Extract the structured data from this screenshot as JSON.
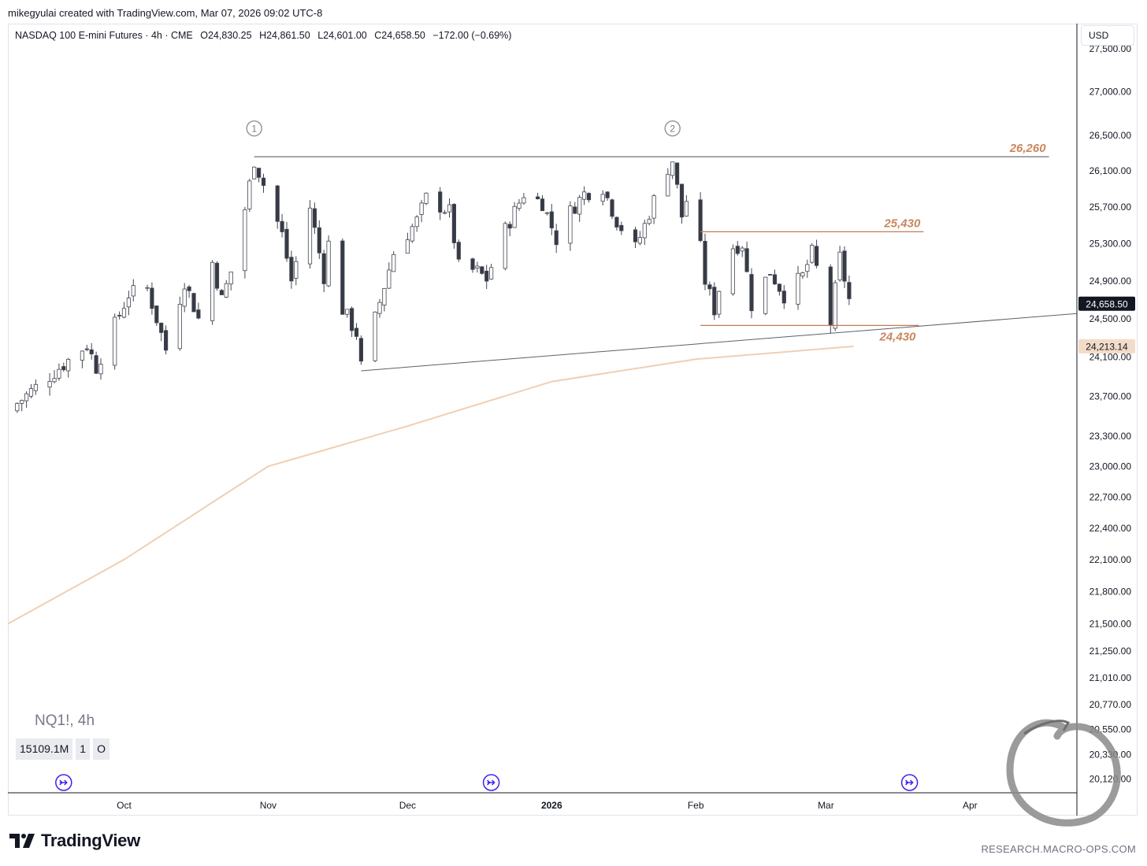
{
  "header": {
    "credit": "mikegyulai created with TradingView.com, Mar 07, 2026 09:02 UTC-8"
  },
  "legend": {
    "title": "NASDAQ 100 E-mini Futures · 4h · CME",
    "open": "O24,830.25",
    "high": "H24,861.50",
    "low": "L24,601.00",
    "close": "C24,658.50",
    "change": "−172.00 (−0.69%)"
  },
  "currency_label": "USD",
  "symbol_overlay": "NQ1!, 4h",
  "volume": {
    "value": "15109.1M",
    "badge_1": "1",
    "badge_2": "O"
  },
  "brand": {
    "name": "TradingView"
  },
  "footer_site": "RESEARCH.MACRO-OPS.COM",
  "colors": {
    "up_candle": "#ffffff",
    "down_candle": "#363a45",
    "candle_outline": "#434651",
    "level_line": "#c27b52",
    "level_text": "#c9865c",
    "moving_average": "#efcfb3",
    "trend_line": "#5d606b",
    "last_price_bg": "#131722",
    "ma_price_bg": "#f2dcc8",
    "event_marker": "#3b22f0"
  },
  "chart_data": {
    "type": "candlestick",
    "symbol": "NQ1!",
    "timeframe": "4h",
    "y_scale": "log",
    "ylim": [
      20000,
      27800
    ],
    "yticks": [
      27500,
      27000,
      26500,
      26100,
      25700,
      25300,
      24900,
      24500,
      24100,
      23700,
      23300,
      23000,
      22700,
      22400,
      22100,
      21800,
      21500,
      21250,
      21010,
      20770,
      20550,
      20330,
      20120
    ],
    "ytick_labels": [
      "27,500.00",
      "27,000.00",
      "26,500.00",
      "26,100.00",
      "25,700.00",
      "25,300.00",
      "24,900.00",
      "24,500.00",
      "24,100.00",
      "23,700.00",
      "23,300.00",
      "23,000.00",
      "22,700.00",
      "22,400.00",
      "22,100.00",
      "21,800.00",
      "21,500.00",
      "21,250.00",
      "21,010.00",
      "20,770.00",
      "20,550.00",
      "20,330.00",
      "20,120.00"
    ],
    "x_range": [
      "2025-09-06",
      "2026-04-24"
    ],
    "xticks": [
      {
        "date": "2025-10-01",
        "label": "Oct",
        "bold": false
      },
      {
        "date": "2025-11-01",
        "label": "Nov",
        "bold": false
      },
      {
        "date": "2025-12-01",
        "label": "Dec",
        "bold": false
      },
      {
        "date": "2026-01-01",
        "label": "2026",
        "bold": true
      },
      {
        "date": "2026-02-01",
        "label": "Feb",
        "bold": false
      },
      {
        "date": "2026-03-01",
        "label": "Mar",
        "bold": false
      },
      {
        "date": "2026-04-01",
        "label": "Apr",
        "bold": false
      }
    ],
    "last_price": {
      "value": 24658.5,
      "label": "24,658.50"
    },
    "ma_price": {
      "value": 24213.14,
      "label": "24,213.14"
    },
    "price_path": [
      [
        "2025-09-06",
        23550
      ],
      [
        "2025-09-16",
        23950
      ],
      [
        "2025-09-23",
        24230
      ],
      [
        "2025-09-25",
        24000
      ],
      [
        "2025-10-02",
        24760
      ],
      [
        "2025-10-06",
        24820
      ],
      [
        "2025-10-10",
        24180
      ],
      [
        "2025-10-14",
        24900
      ],
      [
        "2025-10-17",
        24500
      ],
      [
        "2025-10-20",
        25100
      ],
      [
        "2025-10-22",
        24700
      ],
      [
        "2025-10-24",
        25000
      ],
      [
        "2025-10-27",
        25680
      ],
      [
        "2025-10-29",
        26220
      ],
      [
        "2025-10-31",
        25950
      ],
      [
        "2025-11-04",
        25400
      ],
      [
        "2025-11-06",
        24900
      ],
      [
        "2025-11-10",
        25700
      ],
      [
        "2025-11-13",
        24950
      ],
      [
        "2025-11-14",
        25300
      ],
      [
        "2025-11-17",
        24600
      ],
      [
        "2025-11-20",
        24350
      ],
      [
        "2025-11-21",
        24000
      ],
      [
        "2025-11-24",
        24500
      ],
      [
        "2025-11-28",
        25200
      ],
      [
        "2025-12-03",
        25550
      ],
      [
        "2025-12-05",
        25800
      ],
      [
        "2025-12-10",
        25650
      ],
      [
        "2025-12-12",
        25050
      ],
      [
        "2025-12-16",
        25000
      ],
      [
        "2025-12-18",
        24920
      ],
      [
        "2025-12-22",
        25450
      ],
      [
        "2025-12-26",
        25850
      ],
      [
        "2025-12-30",
        25750
      ],
      [
        "2026-01-02",
        25350
      ],
      [
        "2026-01-05",
        25650
      ],
      [
        "2026-01-08",
        25850
      ],
      [
        "2026-01-12",
        25920
      ],
      [
        "2026-01-15",
        25550
      ],
      [
        "2026-01-19",
        25250
      ],
      [
        "2026-01-21",
        25500
      ],
      [
        "2026-01-25",
        26050
      ],
      [
        "2026-01-27",
        26220
      ],
      [
        "2026-01-29",
        25600
      ],
      [
        "2026-01-31",
        25950
      ],
      [
        "2026-02-03",
        24900
      ],
      [
        "2026-02-05",
        24600
      ],
      [
        "2026-02-08",
        25250
      ],
      [
        "2026-02-11",
        25300
      ],
      [
        "2026-02-13",
        24650
      ],
      [
        "2026-02-17",
        25000
      ],
      [
        "2026-02-20",
        24750
      ],
      [
        "2026-02-24",
        24950
      ],
      [
        "2026-02-26",
        25200
      ],
      [
        "2026-03-01",
        24700
      ],
      [
        "2026-03-02",
        24450
      ],
      [
        "2026-03-04",
        25150
      ],
      [
        "2026-03-06",
        24700
      ],
      [
        "2026-03-07",
        24658.5
      ]
    ],
    "ma_line": [
      [
        "2025-09-06",
        21500
      ],
      [
        "2025-10-01",
        22100
      ],
      [
        "2025-11-01",
        23000
      ],
      [
        "2025-12-01",
        23400
      ],
      [
        "2026-01-01",
        23850
      ],
      [
        "2026-02-01",
        24080
      ],
      [
        "2026-03-07",
        24213
      ]
    ],
    "trend_line": {
      "start": [
        "2025-11-21",
        23960
      ],
      "end": [
        "2026-04-24",
        24555
      ]
    },
    "resistance_line": {
      "start": [
        "2025-10-29",
        26260
      ],
      "end": [
        "2026-04-18",
        26260
      ]
    },
    "levels": [
      {
        "value": 26260,
        "label": "26,260",
        "start": "2025-10-29",
        "end": "2026-04-18"
      },
      {
        "value": 25430,
        "label": "25,430",
        "start": "2026-02-02",
        "end": "2026-03-22"
      },
      {
        "value": 24430,
        "label": "24,430",
        "start": "2026-02-02",
        "end": "2026-03-21"
      }
    ],
    "wave_markers": [
      {
        "label": "1",
        "date": "2025-10-29",
        "value": 26580
      },
      {
        "label": "2",
        "date": "2026-01-27",
        "value": 26580
      }
    ],
    "event_markers": [
      "2025-09-18",
      "2025-12-19",
      "2026-03-19"
    ]
  }
}
